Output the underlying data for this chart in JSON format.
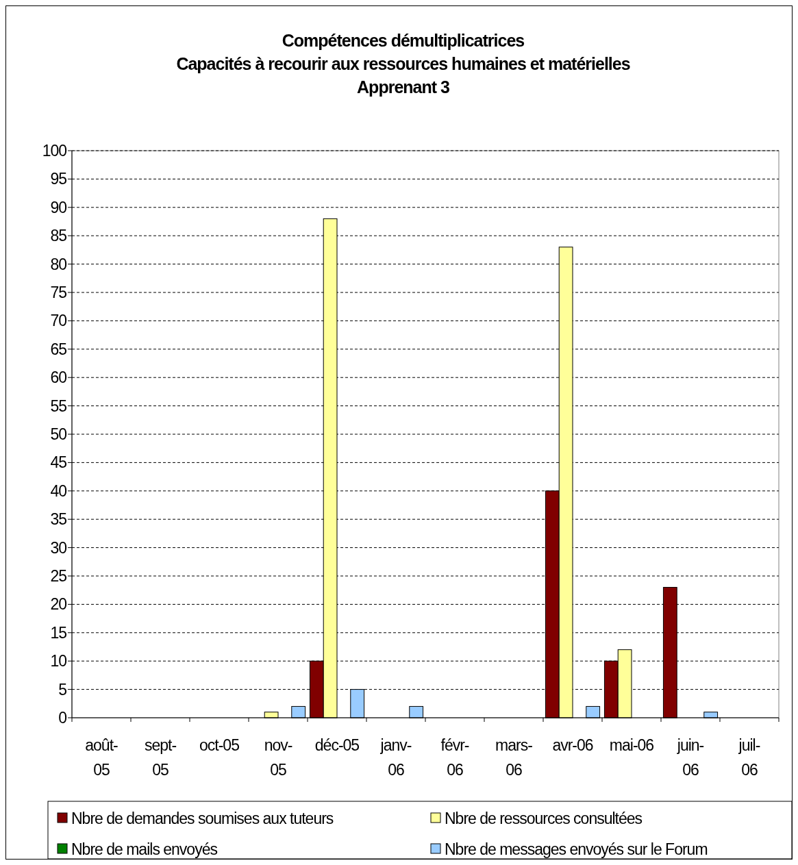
{
  "chart_data": {
    "type": "bar",
    "title": "Compétences démultiplicatrices\nCapacités à recourir aux ressources humaines et matérielles\nApprenant 3",
    "categories": [
      "août-05",
      "sept-05",
      "oct-05",
      "nov-05",
      "déc-05",
      "janv-06",
      "févr-06",
      "mars-06",
      "avr-06",
      "mai-06",
      "juin-06",
      "juil-06"
    ],
    "series": [
      {
        "name": "Nbre de demandes soumises aux tuteurs",
        "color": "#800000",
        "values": [
          0,
          0,
          0,
          0,
          10,
          0,
          0,
          0,
          40,
          10,
          23,
          0
        ]
      },
      {
        "name": "Nbre de ressources consultées",
        "color": "#ffff99",
        "values": [
          0,
          0,
          0,
          1,
          88,
          0,
          0,
          0,
          83,
          12,
          0,
          0
        ]
      },
      {
        "name": "Nbre de mails envoyés",
        "color": "#008000",
        "values": [
          0,
          0,
          0,
          0,
          0,
          0,
          0,
          0,
          0,
          0,
          0,
          0
        ]
      },
      {
        "name": "Nbre de messages envoyés sur le Forum",
        "color": "#99ccff",
        "values": [
          0,
          0,
          0,
          2,
          5,
          2,
          0,
          0,
          2,
          0,
          1,
          0
        ]
      }
    ],
    "ylim": [
      0,
      100
    ],
    "yticks": [
      0,
      5,
      10,
      15,
      20,
      25,
      30,
      35,
      40,
      45,
      50,
      55,
      60,
      65,
      70,
      75,
      80,
      85,
      90,
      95,
      100
    ],
    "grid": "y",
    "legend": "bottom"
  }
}
